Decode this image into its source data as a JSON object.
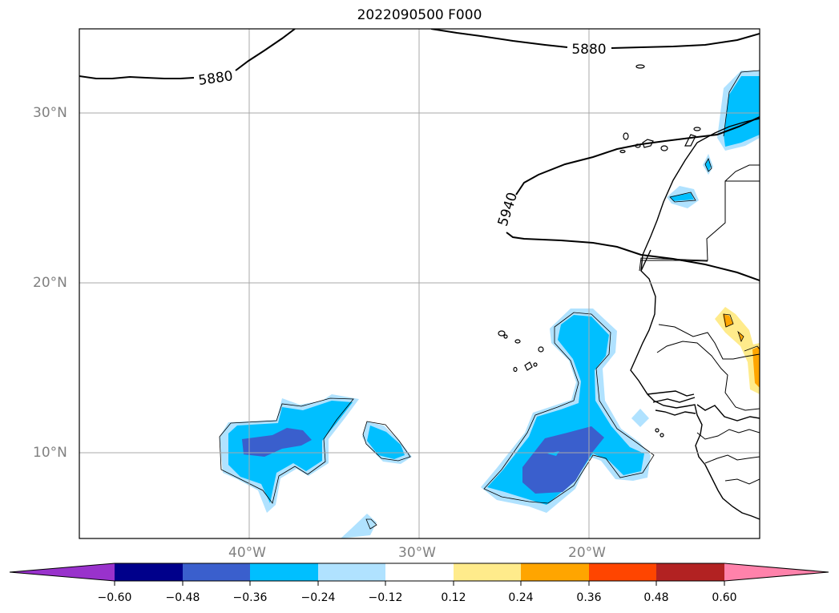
{
  "title": "2022090500 F000",
  "lat_labels": [
    "30°N",
    "20°N",
    "10°N"
  ],
  "lon_labels": [
    "40°W",
    "30°W",
    "20°W"
  ],
  "contour_labels": [
    "5880",
    "5880",
    "5940"
  ],
  "colorbar": {
    "ticks": [
      "−0.60",
      "−0.48",
      "−0.36",
      "−0.24",
      "−0.12",
      "0.12",
      "0.24",
      "0.36",
      "0.48",
      "0.60"
    ],
    "colors": [
      "#9932cc",
      "#00008b",
      "#3a5fcd",
      "#00bfff",
      "#b0e2ff",
      "#ffffff",
      "#ffeb8b",
      "#ffa500",
      "#ff4500",
      "#b22222",
      "#ff82ab"
    ]
  }
}
